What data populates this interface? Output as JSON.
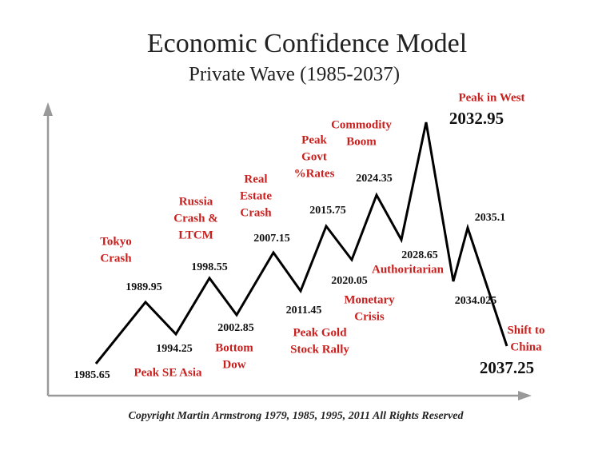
{
  "header": {
    "title": "Economic Confidence Model",
    "subtitle": "Private Wave (1985-2037)"
  },
  "nodes": [
    {
      "label": "1985.65"
    },
    {
      "label": "1989.95"
    },
    {
      "label": "1994.25"
    },
    {
      "label": "1998.55"
    },
    {
      "label": "2002.85"
    },
    {
      "label": "2007.15"
    },
    {
      "label": "2011.45"
    },
    {
      "label": "2015.75"
    },
    {
      "label": "2020.05"
    },
    {
      "label": "2024.35"
    },
    {
      "label": "2028.65"
    },
    {
      "label": "2032.95"
    },
    {
      "label": "2034.025"
    },
    {
      "label": "2035.1"
    },
    {
      "label": "2037.25"
    }
  ],
  "annotations": [
    {
      "lines": [
        "Tokyo",
        "Crash"
      ]
    },
    {
      "lines": [
        "Russia",
        "Crash &",
        "LTCM"
      ]
    },
    {
      "lines": [
        "Real",
        "Estate",
        "Crash"
      ]
    },
    {
      "lines": [
        "Peak",
        "Govt",
        "%Rates"
      ]
    },
    {
      "lines": [
        "Commodity",
        "Boom"
      ]
    },
    {
      "lines": [
        "Peak in West"
      ]
    },
    {
      "lines": [
        "Peak SE Asia"
      ]
    },
    {
      "lines": [
        "Bottom",
        "Dow"
      ]
    },
    {
      "lines": [
        "Peak Gold",
        "Stock Rally"
      ]
    },
    {
      "lines": [
        "Authoritarian"
      ]
    },
    {
      "lines": [
        "Monetary",
        "Crisis"
      ]
    },
    {
      "lines": [
        "Shift to",
        "China"
      ]
    }
  ],
  "footer": {
    "copyright": "Copyright Martin Armstrong 1979, 1985, 1995, 2011 All Rights Reserved"
  }
}
